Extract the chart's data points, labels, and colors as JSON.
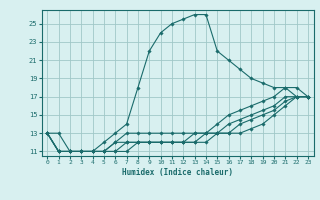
{
  "xlabel": "Humidex (Indice chaleur)",
  "ylabel": "",
  "bg_color": "#d8f0f0",
  "grid_color": "#a0c8c8",
  "line_color": "#1a6b6b",
  "xlim": [
    -0.5,
    23.5
  ],
  "ylim": [
    10.5,
    26.5
  ],
  "xticks": [
    0,
    1,
    2,
    3,
    4,
    5,
    6,
    7,
    8,
    9,
    10,
    11,
    12,
    13,
    14,
    15,
    16,
    17,
    18,
    19,
    20,
    21,
    22,
    23
  ],
  "yticks": [
    11,
    13,
    15,
    17,
    19,
    21,
    23,
    25
  ],
  "lines": [
    {
      "x": [
        0,
        1,
        2,
        3,
        4,
        5,
        6,
        7,
        8,
        9,
        10,
        11,
        12,
        13,
        14,
        15,
        16,
        17,
        18,
        19,
        20,
        21,
        22,
        23
      ],
      "y": [
        13,
        13,
        11,
        11,
        11,
        12,
        13,
        14,
        18,
        22,
        24,
        25,
        25.5,
        26,
        26,
        22,
        21,
        20,
        19,
        18.5,
        18,
        18,
        17,
        17
      ]
    },
    {
      "x": [
        0,
        1,
        2,
        3,
        4,
        5,
        6,
        7,
        8,
        9,
        10,
        11,
        12,
        13,
        14,
        15,
        16,
        17,
        18,
        19,
        20,
        21,
        22,
        23
      ],
      "y": [
        13,
        11,
        11,
        11,
        11,
        11,
        12,
        13,
        13,
        13,
        13,
        13,
        13,
        13,
        13,
        14,
        15,
        15.5,
        16,
        16.5,
        17,
        18,
        18,
        17
      ]
    },
    {
      "x": [
        0,
        1,
        2,
        3,
        4,
        5,
        6,
        7,
        8,
        9,
        10,
        11,
        12,
        13,
        14,
        15,
        16,
        17,
        18,
        19,
        20,
        21,
        22,
        23
      ],
      "y": [
        13,
        11,
        11,
        11,
        11,
        11,
        12,
        12,
        12,
        12,
        12,
        12,
        12,
        13,
        13,
        13,
        14,
        14.5,
        15,
        15.5,
        16,
        17,
        17,
        17
      ]
    },
    {
      "x": [
        0,
        1,
        2,
        3,
        4,
        5,
        6,
        7,
        8,
        9,
        10,
        11,
        12,
        13,
        14,
        15,
        16,
        17,
        18,
        19,
        20,
        21,
        22,
        23
      ],
      "y": [
        13,
        11,
        11,
        11,
        11,
        11,
        11,
        12,
        12,
        12,
        12,
        12,
        12,
        12,
        13,
        13,
        13,
        14,
        14.5,
        15,
        15.5,
        16.5,
        17,
        17
      ]
    },
    {
      "x": [
        0,
        1,
        2,
        3,
        4,
        5,
        6,
        7,
        8,
        9,
        10,
        11,
        12,
        13,
        14,
        15,
        16,
        17,
        18,
        19,
        20,
        21,
        22,
        23
      ],
      "y": [
        13,
        11,
        11,
        11,
        11,
        11,
        11,
        11,
        12,
        12,
        12,
        12,
        12,
        12,
        12,
        13,
        13,
        13,
        13.5,
        14,
        15,
        16,
        17,
        17
      ]
    }
  ]
}
